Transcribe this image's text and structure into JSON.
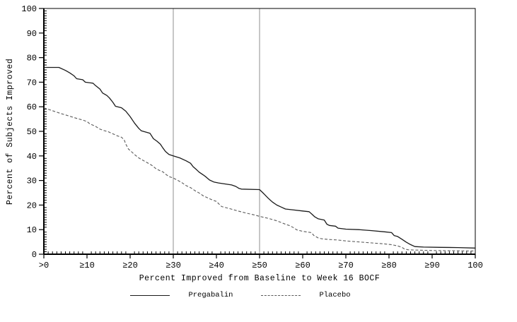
{
  "figure": {
    "background": "#ffffff"
  },
  "chart_data": {
    "type": "line",
    "title": "",
    "xlabel": "Percent Improved from Baseline to Week 16 BOCF",
    "ylabel": "Percent of Subjects Improved",
    "xlim": [
      0,
      100
    ],
    "ylim": [
      0,
      100
    ],
    "grid": false,
    "legend_position": "bottom",
    "axis_color": "#000000",
    "reference_line_color": "#a9a9a9",
    "reference_lines_x": [
      30,
      50
    ],
    "x_minor_step": 1,
    "y_minor_step": 1,
    "x_tick_positions": [
      0,
      10,
      20,
      30,
      40,
      50,
      60,
      70,
      80,
      90,
      100
    ],
    "x_tick_labels": [
      ">0",
      "≥10",
      "≥20",
      "≥30",
      "≥40",
      "≥50",
      "≥60",
      "≥70",
      "≥80",
      "≥90",
      "100"
    ],
    "y_tick_positions": [
      0,
      10,
      20,
      30,
      40,
      50,
      60,
      70,
      80,
      90,
      100
    ],
    "y_tick_labels": [
      "0",
      "10",
      "20",
      "30",
      "40",
      "50",
      "60",
      "70",
      "80",
      "90",
      "100"
    ],
    "series": [
      {
        "name": "Pregabalin",
        "style": "solid",
        "color": "#1a1a1a",
        "points": [
          [
            0,
            76
          ],
          [
            3.5,
            76
          ],
          [
            5,
            74.8
          ],
          [
            6,
            73.8
          ],
          [
            7,
            72.6
          ],
          [
            7.6,
            71.4
          ],
          [
            9,
            71
          ],
          [
            9.6,
            70
          ],
          [
            11.4,
            69.6
          ],
          [
            12,
            68.6
          ],
          [
            13,
            67.2
          ],
          [
            13.6,
            65.6
          ],
          [
            14.6,
            64.6
          ],
          [
            15.2,
            63.6
          ],
          [
            16,
            61.8
          ],
          [
            16.6,
            60.2
          ],
          [
            18,
            59.6
          ],
          [
            19,
            58.2
          ],
          [
            20,
            56
          ],
          [
            21,
            53.4
          ],
          [
            22,
            51.2
          ],
          [
            22.6,
            50.2
          ],
          [
            24.6,
            49.2
          ],
          [
            25.4,
            47
          ],
          [
            26.2,
            46
          ],
          [
            27,
            44.8
          ],
          [
            27.6,
            43.2
          ],
          [
            28.2,
            41.8
          ],
          [
            29,
            40.6
          ],
          [
            30,
            40
          ],
          [
            31.5,
            39.2
          ],
          [
            33,
            38
          ],
          [
            34,
            37
          ],
          [
            34.6,
            35.6
          ],
          [
            35.4,
            34.4
          ],
          [
            36,
            33.4
          ],
          [
            37,
            32.2
          ],
          [
            37.6,
            31.4
          ],
          [
            38.4,
            30.2
          ],
          [
            39.4,
            29.4
          ],
          [
            40.5,
            29
          ],
          [
            42,
            28.6
          ],
          [
            43.5,
            28.2
          ],
          [
            44.5,
            27.6
          ],
          [
            45.2,
            26.8
          ],
          [
            45.8,
            26.5
          ],
          [
            50,
            26.3
          ],
          [
            51,
            24.6
          ],
          [
            52,
            22.8
          ],
          [
            53,
            21.2
          ],
          [
            54,
            20
          ],
          [
            55,
            19.2
          ],
          [
            56,
            18.4
          ],
          [
            58,
            18
          ],
          [
            60,
            17.6
          ],
          [
            61.5,
            17.3
          ],
          [
            62.2,
            16.2
          ],
          [
            62.8,
            15.2
          ],
          [
            63.6,
            14.4
          ],
          [
            65,
            13.9
          ],
          [
            65.6,
            12.2
          ],
          [
            66.2,
            11.7
          ],
          [
            67.6,
            11.4
          ],
          [
            68.2,
            10.6
          ],
          [
            70,
            10.2
          ],
          [
            73,
            10
          ],
          [
            76,
            9.6
          ],
          [
            79,
            9.1
          ],
          [
            80.6,
            8.8
          ],
          [
            81.2,
            7.6
          ],
          [
            82,
            7.2
          ],
          [
            83,
            6.1
          ],
          [
            84,
            4.9
          ],
          [
            85,
            3.9
          ],
          [
            86,
            3.1
          ],
          [
            88,
            2.9
          ],
          [
            92,
            2.8
          ],
          [
            96,
            2.7
          ],
          [
            100,
            2.5
          ]
        ]
      },
      {
        "name": "Placebo",
        "style": "dashed",
        "color": "#5a5a5a",
        "points": [
          [
            0,
            59.6
          ],
          [
            1,
            59
          ],
          [
            2,
            58.4
          ],
          [
            4,
            57.2
          ],
          [
            5,
            56.7
          ],
          [
            7,
            55.6
          ],
          [
            8,
            55.1
          ],
          [
            9,
            54.6
          ],
          [
            10,
            54
          ],
          [
            10.6,
            53.1
          ],
          [
            12,
            52
          ],
          [
            13,
            50.9
          ],
          [
            14,
            50.3
          ],
          [
            15,
            49.8
          ],
          [
            16,
            49
          ],
          [
            17,
            48.2
          ],
          [
            18,
            47.6
          ],
          [
            18.6,
            46.6
          ],
          [
            19,
            44.8
          ],
          [
            19.6,
            42.8
          ],
          [
            20,
            42.2
          ],
          [
            21,
            40.6
          ],
          [
            22,
            39.2
          ],
          [
            23,
            38.2
          ],
          [
            24,
            37.2
          ],
          [
            25,
            36.2
          ],
          [
            26,
            34.8
          ],
          [
            27,
            33.9
          ],
          [
            27.6,
            33.5
          ],
          [
            28.2,
            32.6
          ],
          [
            29,
            31.6
          ],
          [
            30,
            31
          ],
          [
            31,
            30.1
          ],
          [
            32,
            29.1
          ],
          [
            33,
            27.9
          ],
          [
            34,
            27.1
          ],
          [
            35,
            25.9
          ],
          [
            36,
            24.9
          ],
          [
            37,
            23.7
          ],
          [
            38,
            22.9
          ],
          [
            39,
            22.1
          ],
          [
            40,
            21.5
          ],
          [
            40.6,
            20.4
          ],
          [
            41.2,
            19.4
          ],
          [
            43,
            18.6
          ],
          [
            45,
            17.6
          ],
          [
            47,
            16.7
          ],
          [
            49,
            15.9
          ],
          [
            50,
            15.4
          ],
          [
            52,
            14.6
          ],
          [
            54,
            13.6
          ],
          [
            55,
            12.9
          ],
          [
            56,
            12.2
          ],
          [
            57,
            11.6
          ],
          [
            58,
            10.7
          ],
          [
            58.6,
            9.9
          ],
          [
            60,
            9.3
          ],
          [
            62,
            8.8
          ],
          [
            62.6,
            7.6
          ],
          [
            63.6,
            6.6
          ],
          [
            64.4,
            6.3
          ],
          [
            66,
            6
          ],
          [
            68,
            5.8
          ],
          [
            70,
            5.4
          ],
          [
            73,
            5
          ],
          [
            76,
            4.6
          ],
          [
            79,
            4.2
          ],
          [
            80.5,
            3.9
          ],
          [
            82,
            3.4
          ],
          [
            83,
            2.8
          ],
          [
            83.6,
            2.1
          ],
          [
            84.4,
            1.8
          ],
          [
            86,
            1.7
          ],
          [
            90,
            1.5
          ],
          [
            95,
            1.4
          ],
          [
            100,
            1.3
          ]
        ]
      }
    ]
  }
}
